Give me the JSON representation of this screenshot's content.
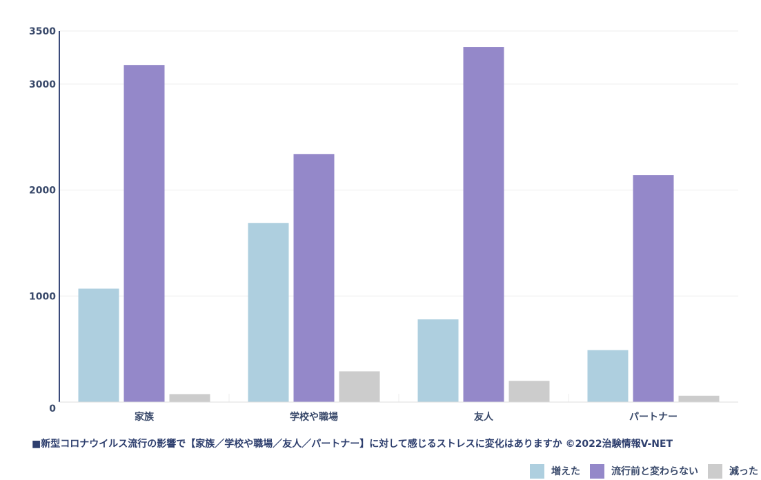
{
  "caption": "■新型コロナウイルス流行の影響で【家族／学校や職場／友人／パートナー】に対して感じるストレスに変化はありますか ©2022治験情報V-NET",
  "chart_data": {
    "type": "bar",
    "categories": [
      "家族",
      "学校や職場",
      "友人",
      "パートナー"
    ],
    "series": [
      {
        "name": "増えた",
        "color": "#aecfdf",
        "values": [
          1070,
          1690,
          780,
          490
        ]
      },
      {
        "name": "流行前と変わらない",
        "color": "#9488c9",
        "values": [
          3180,
          2340,
          3350,
          2140
        ]
      },
      {
        "name": "減った",
        "color": "#cccccc",
        "values": [
          75,
          290,
          200,
          60
        ]
      }
    ],
    "yticks": [
      0,
      1000,
      2000,
      3000,
      3500
    ],
    "ylim": [
      0,
      3500
    ],
    "grid": true,
    "legend_position": "bottom-right"
  }
}
